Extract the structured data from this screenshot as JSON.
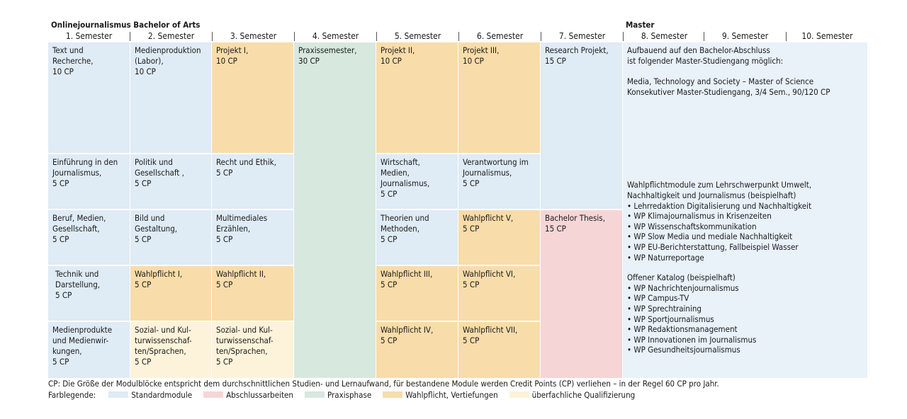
{
  "bachelor_title": "Onlinejournalismus Bachelor of Arts",
  "master_title": "Master",
  "semesters": [
    "1. Semester",
    "2. Semester",
    "3. Semester",
    "4. Semester",
    "5. Semester",
    "6. Semester",
    "7. Semester",
    "8. Semester",
    "9. Semester",
    "10. Semester"
  ],
  "modules": [
    {
      "text": "Text und\nRecherche,\n10 CP",
      "category": "std"
    },
    {
      "text": "Einführung in den\nJournalismus,\n5 CP",
      "category": "std"
    },
    {
      "text": "Beruf, Medien,\nGesellschaft,\n5 CP",
      "category": "std"
    },
    {
      "text": "Technik und\nDarstellung,\n5 CP",
      "category": "std"
    },
    {
      "text": "Medienprodukte\nund Medienwir-\nkungen,\n5 CP",
      "category": "std"
    },
    {
      "text": "Medienproduktion\n(Labor),\n10 CP",
      "category": "std"
    },
    {
      "text": "Politik und\nGesellschaft ,\n5 CP",
      "category": "std"
    },
    {
      "text": "Bild und\nGestaltung,\n5 CP",
      "category": "std"
    },
    {
      "text": "Wahlpflicht I,\n5 CP",
      "category": "wp"
    },
    {
      "text": "Sozial- und Kul-\nturwissenschaf-\nten/Sprachen,\n5 CP",
      "category": "ue"
    },
    {
      "text": "Projekt I,\n10 CP",
      "category": "wp"
    },
    {
      "text": "Recht und Ethik,\n5 CP",
      "category": "std"
    },
    {
      "text": "Multimediales\nErzählen,\n5 CP",
      "category": "std"
    },
    {
      "text": "Wahlpflicht II,\n5 CP",
      "category": "wp"
    },
    {
      "text": "Sozial- und Kul-\nturwissenschaf-\nten/Sprachen,\n5 CP",
      "category": "ue"
    },
    {
      "text": "Praxissemester,\n30 CP",
      "category": "pr"
    },
    {
      "text": "Projekt II,\n10 CP",
      "category": "wp"
    },
    {
      "text": "Wirtschaft,\nMedien,\nJournalismus,\n5 CP",
      "category": "std"
    },
    {
      "text": "Theorien und\nMethoden,\n5 CP",
      "category": "std"
    },
    {
      "text": "Wahlpflicht III,\n5 CP",
      "category": "wp"
    },
    {
      "text": "Wahlpflicht IV,\n5 CP",
      "category": "wp"
    },
    {
      "text": "Projekt III,\n10 CP",
      "category": "wp"
    },
    {
      "text": "Verantwortung im\nJournalismus,\n5 CP",
      "category": "std"
    },
    {
      "text": "Wahlpflicht V,\n5 CP",
      "category": "wp"
    },
    {
      "text": "Wahlpflicht VI,\n5 CP",
      "category": "wp"
    },
    {
      "text": "Wahlpflicht VII,\n5 CP",
      "category": "wp"
    },
    {
      "text": "Research Projekt,\n15 CP",
      "category": "std"
    },
    {
      "text": "Bachelor Thesis,\n15 CP",
      "category": "ab"
    }
  ],
  "master": {
    "intro": "Aufbauend auf den Bachelor-Abschluss\nist folgender Master-Studiengang möglich:",
    "program_name": "Media, Technology and Society – Master of Science",
    "program_detail": "Konsekutiver Master-Studiengang, 3/4 Sem., 90/120 CP",
    "wp_heading_1": "Wahlpflichtmodule zum Lehrschwerpunkt Umwelt,",
    "wp_heading_2": "Nachhaltigkeit und Journalismus (beispielhaft)",
    "wp_items": [
      "Lehrredaktion Digitalisierung und Nachhaltigkeit",
      "WP Klimajournalismus in Krisenzeiten",
      "WP Wissenschaftskommunikation",
      "WP Slow Media und mediale Nachhaltigkeit",
      "WP EU-Berichterstattung, Fallbeispiel Wasser",
      "WP Naturreportage"
    ],
    "catalog_heading": "Offener Katalog (beispielhaft)",
    "catalog_items": [
      "WP Nachrichtenjournalismus",
      "WP Campus-TV",
      "WP Sprechtraining",
      "WP Sportjournalismus",
      "WP Redaktionsmanagement",
      "WP Innovationen im Journalismus",
      "WP Gesundheitsjournalismus"
    ]
  },
  "footer_note": "CP: Die Größe der Modulblöcke entspricht dem durchschnittlichen Studien- und Lernaufwand, für bestandene Module werden Credit Points (CP) verliehen – in der Regel 60 CP pro Jahr.",
  "legend": {
    "label": "Farblegende:",
    "items": [
      {
        "label": "Standardmodule",
        "color": "#dfebf5"
      },
      {
        "label": "Abschlussarbeiten",
        "color": "#f6d5d7"
      },
      {
        "label": "Praxisphase",
        "color": "#d7e8de"
      },
      {
        "label": "Wahlpflicht, Vertiefungen",
        "color": "#f8dcaa"
      },
      {
        "label": "überfachliche Qualifizierung",
        "color": "#fcf3da"
      }
    ]
  }
}
